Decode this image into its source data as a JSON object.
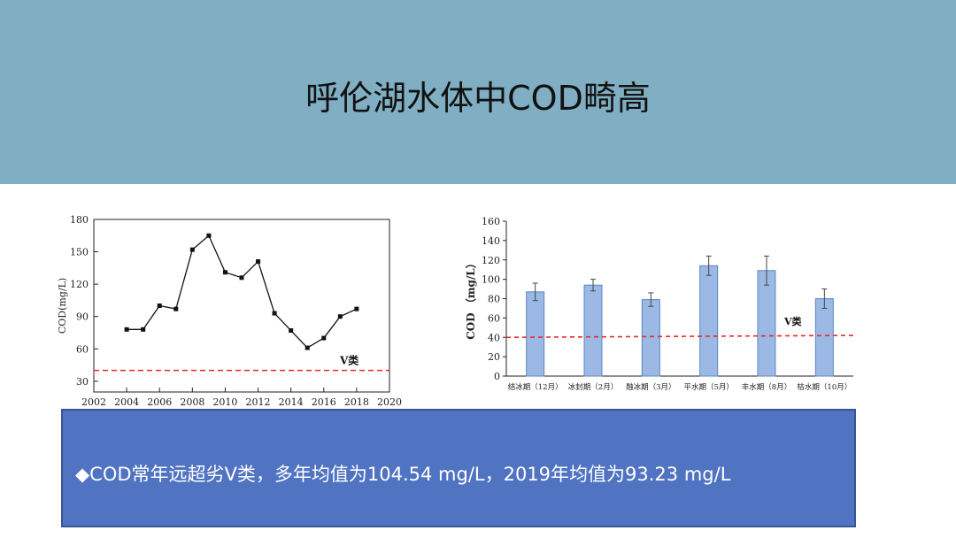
{
  "title": "呼伦湖水体中COD畸高",
  "summary": "◆COD常年远超劣V类，多年均值为104.54 mg/L，2019年均值为93.23 mg/L",
  "chart_data": [
    {
      "type": "line",
      "xlabel": "",
      "ylabel": "COD(mg/L)",
      "x": [
        2004,
        2005,
        2006,
        2007,
        2008,
        2009,
        2010,
        2011,
        2012,
        2013,
        2014,
        2015,
        2016,
        2017,
        2018
      ],
      "values": [
        78,
        78,
        100,
        97,
        152,
        165,
        131,
        126,
        141,
        93,
        77,
        61,
        70,
        90,
        97
      ],
      "xlim": [
        2002,
        2020
      ],
      "ylim": [
        20,
        180
      ],
      "xticks": [
        2002,
        2004,
        2006,
        2008,
        2010,
        2012,
        2014,
        2016,
        2018,
        2020
      ],
      "yticks": [
        30,
        60,
        90,
        120,
        150,
        180
      ],
      "reference_line": {
        "value": 40,
        "label": "V类",
        "color": "#e52b2b"
      },
      "line_color": "#111111"
    },
    {
      "type": "bar",
      "ylabel": "COD （mg/L）",
      "categories": [
        "结冰期（12月）",
        "冰封期（2月）",
        "融冰期（3月）",
        "平水期（5月）",
        "丰水期（8月）",
        "枯水期（10月）"
      ],
      "values": [
        87,
        94,
        79,
        114,
        109,
        80
      ],
      "errors": [
        9,
        6,
        7,
        10,
        15,
        10
      ],
      "ylim": [
        0,
        160
      ],
      "yticks": [
        0,
        20,
        40,
        60,
        80,
        100,
        120,
        140,
        160
      ],
      "reference_line": {
        "value_start": 40,
        "value_end": 42,
        "label": "V类",
        "color": "#e52b2b"
      },
      "bar_color": "#9bb9e4",
      "bar_border": "#5b86c4"
    }
  ]
}
